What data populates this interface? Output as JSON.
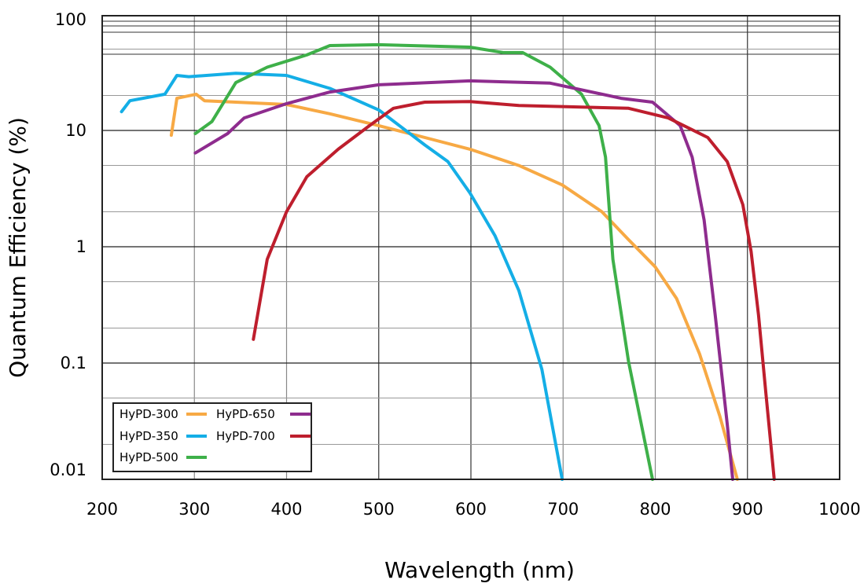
{
  "chart_data": {
    "type": "line",
    "title": "",
    "xlabel": "Wavelength (nm)",
    "ylabel": "Quantum Efficiency (%)",
    "xlim": [
      200,
      1000
    ],
    "ylim": [
      0.01,
      100
    ],
    "yscale": "log",
    "grid": true,
    "legend_position": "bottom-left",
    "xticks": [
      "200",
      "300",
      "400",
      "500",
      "600",
      "700",
      "800",
      "900",
      "1000"
    ],
    "yticks": [
      "0.01",
      "0.1",
      "1",
      "10",
      "100"
    ],
    "series": [
      {
        "name": "HyPD-300",
        "color": "#f7a944",
        "x": [
          275,
          281,
          302,
          311,
          345,
          400,
          447,
          500,
          550,
          599,
          652,
          699,
          742,
          771,
          800,
          823,
          848,
          870,
          889
        ],
        "y": [
          9.1,
          18.9,
          20.5,
          18,
          17.5,
          16.7,
          13.9,
          11,
          8.7,
          6.9,
          5.0,
          3.4,
          2.0,
          1.15,
          0.67,
          0.36,
          0.12,
          0.035,
          0.01
        ]
      },
      {
        "name": "HyPD-350",
        "color": "#14aee6",
        "x": [
          221,
          230,
          268,
          281,
          294,
          345,
          400,
          447,
          500,
          550,
          575,
          599,
          626,
          652,
          677,
          699
        ],
        "y": [
          14.5,
          18,
          20.5,
          29.7,
          29,
          31,
          29.7,
          23,
          15,
          7.5,
          5.4,
          2.9,
          1.25,
          0.42,
          0.088,
          0.01
        ]
      },
      {
        "name": "HyPD-500",
        "color": "#3eb049",
        "x": [
          301,
          319,
          345,
          379,
          422,
          447,
          500,
          599,
          635,
          656,
          686,
          720,
          739,
          746,
          754,
          771,
          797
        ],
        "y": [
          9.4,
          11.9,
          25.8,
          35,
          44.6,
          53.7,
          54.6,
          52,
          46.7,
          46.7,
          35,
          20.5,
          11,
          5.9,
          0.78,
          0.103,
          0.01
        ]
      },
      {
        "name": "HyPD-650",
        "color": "#8e2c8e",
        "x": [
          301,
          336,
          354,
          400,
          447,
          500,
          599,
          686,
          763,
          797,
          827,
          840,
          853,
          865,
          878,
          884
        ],
        "y": [
          6.4,
          9.4,
          12.8,
          17,
          21.4,
          24.7,
          26.7,
          25.5,
          18.9,
          17.5,
          11,
          5.9,
          1.7,
          0.26,
          0.03,
          0.01
        ]
      },
      {
        "name": "HyPD-700",
        "color": "#be1e2d",
        "x": [
          364,
          379,
          400,
          422,
          456,
          490,
          516,
          550,
          599,
          652,
          703,
          771,
          814,
          857,
          878,
          895,
          904,
          912,
          920,
          929
        ],
        "y": [
          0.16,
          0.78,
          2.0,
          4.0,
          6.9,
          11,
          15.5,
          17.5,
          17.7,
          16.4,
          16,
          15.5,
          12.8,
          8.7,
          5.4,
          2.3,
          0.91,
          0.26,
          0.055,
          0.01
        ]
      }
    ]
  }
}
